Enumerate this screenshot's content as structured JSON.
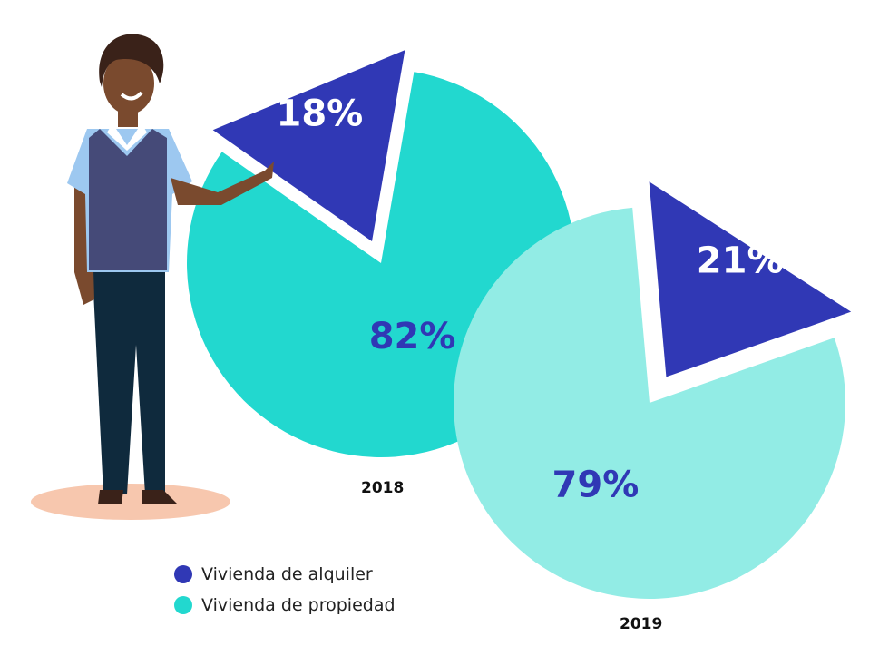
{
  "chart_data": [
    {
      "type": "pie",
      "year_label": "2018",
      "slices": [
        {
          "name": "Vivienda de alquiler",
          "value": 18,
          "label": "18%",
          "color": "#3038b5"
        },
        {
          "name": "Vivienda de propiedad",
          "value": 82,
          "label": "82%",
          "color": "#22d8cf"
        }
      ]
    },
    {
      "type": "pie",
      "year_label": "2019",
      "slices": [
        {
          "name": "Vivienda de alquiler",
          "value": 21,
          "label": "21%",
          "color": "#3038b5"
        },
        {
          "name": "Vivienda de propiedad",
          "value": 79,
          "label": "79%",
          "color": "#92ece5"
        }
      ]
    }
  ],
  "legend": [
    {
      "label": "Vivienda de alquiler",
      "color": "#3038b5"
    },
    {
      "label": "Vivienda de propiedad",
      "color": "#22d8cf"
    }
  ],
  "illustration": {
    "name": "person-pointing-illustration"
  }
}
